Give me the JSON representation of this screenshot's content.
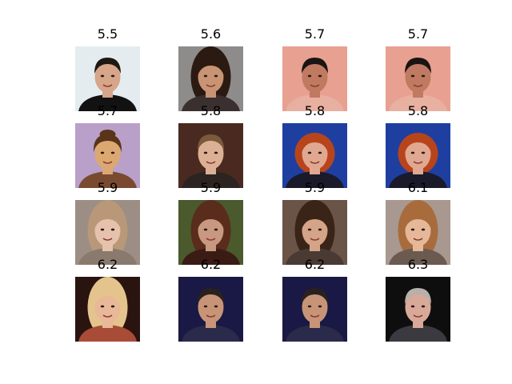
{
  "figure": {
    "panels": [
      {
        "label": "5.5",
        "bg": "#e4ecf0",
        "skin": "#d6a58a",
        "hair": "#1e1812",
        "shirt": "#121212",
        "hair_style": "short"
      },
      {
        "label": "5.6",
        "bg": "#8e8c8a",
        "skin": "#c89474",
        "hair": "#2b1a12",
        "shirt": "#3a3030",
        "hair_style": "long"
      },
      {
        "label": "5.7",
        "bg": "#e8a090",
        "skin": "#c07a62",
        "hair": "#1a1414",
        "shirt": "#e8b0a0",
        "hair_style": "short"
      },
      {
        "label": "5.7",
        "bg": "#e8a090",
        "skin": "#c07a62",
        "hair": "#1a1414",
        "shirt": "#e8b0a0",
        "hair_style": "short"
      },
      {
        "label": "5.7",
        "bg": "#b8a0c8",
        "skin": "#dca872",
        "hair": "#5a3418",
        "shirt": "#7a4a30",
        "hair_style": "bun"
      },
      {
        "label": "5.8",
        "bg": "#4a2a20",
        "skin": "#dcb094",
        "hair": "#7a5a3c",
        "shirt": "#2c2420",
        "hair_style": "short"
      },
      {
        "label": "5.8",
        "bg": "#1f3fa0",
        "skin": "#e0a890",
        "hair": "#b8441c",
        "shirt": "#1a1a2a",
        "hair_style": "bob"
      },
      {
        "label": "5.8",
        "bg": "#1f3fa0",
        "skin": "#e0a890",
        "hair": "#b8441c",
        "shirt": "#1a1a2a",
        "hair_style": "bob"
      },
      {
        "label": "5.9",
        "bg": "#9c8e84",
        "skin": "#e6c2ac",
        "hair": "#b89878",
        "shirt": "#8a7a6e",
        "hair_style": "long"
      },
      {
        "label": "5.9",
        "bg": "#4a5a2c",
        "skin": "#c89880",
        "hair": "#5a2c1c",
        "shirt": "#3a1c14",
        "hair_style": "long"
      },
      {
        "label": "5.9",
        "bg": "#6a5448",
        "skin": "#d4a488",
        "hair": "#3a2418",
        "shirt": "#4a3a34",
        "hair_style": "long"
      },
      {
        "label": "6.1",
        "bg": "#a89890",
        "skin": "#e4b898",
        "hair": "#a86c3c",
        "shirt": "#6a5a50",
        "hair_style": "long"
      },
      {
        "label": "6.2",
        "bg": "#2a1410",
        "skin": "#e8b898",
        "hair": "#e4c48c",
        "shirt": "#a84c38",
        "hair_style": "long"
      },
      {
        "label": "6.2",
        "bg": "#1a1844",
        "skin": "#c89478",
        "hair": "#2a2020",
        "shirt": "#2a2a4a",
        "hair_style": "short"
      },
      {
        "label": "6.2",
        "bg": "#1a1844",
        "skin": "#c89478",
        "hair": "#2a2020",
        "shirt": "#2a2a4a",
        "hair_style": "short"
      },
      {
        "label": "6.3",
        "bg": "#0e0e0e",
        "skin": "#d8a898",
        "hair": "#b8b0aa",
        "shirt": "#3a3a40",
        "hair_style": "short"
      }
    ]
  }
}
